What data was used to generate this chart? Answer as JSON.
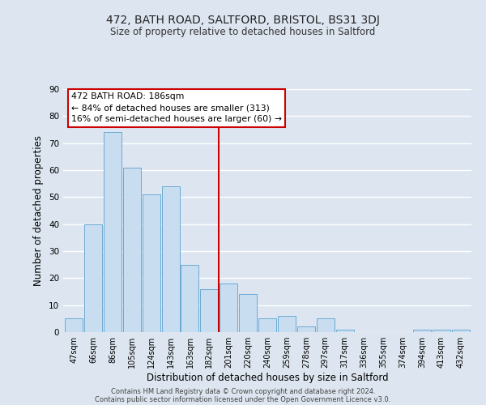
{
  "title": "472, BATH ROAD, SALTFORD, BRISTOL, BS31 3DJ",
  "subtitle": "Size of property relative to detached houses in Saltford",
  "xlabel": "Distribution of detached houses by size in Saltford",
  "ylabel": "Number of detached properties",
  "bar_labels": [
    "47sqm",
    "66sqm",
    "86sqm",
    "105sqm",
    "124sqm",
    "143sqm",
    "163sqm",
    "182sqm",
    "201sqm",
    "220sqm",
    "240sqm",
    "259sqm",
    "278sqm",
    "297sqm",
    "317sqm",
    "336sqm",
    "355sqm",
    "374sqm",
    "394sqm",
    "413sqm",
    "432sqm"
  ],
  "bar_values": [
    5,
    40,
    74,
    61,
    51,
    54,
    25,
    16,
    18,
    14,
    5,
    6,
    2,
    5,
    1,
    0,
    0,
    0,
    1,
    1,
    1
  ],
  "bar_color": "#c9ddf0",
  "bar_edge_color": "#6aaad4",
  "vline_color": "#cc0000",
  "annotation_title": "472 BATH ROAD: 186sqm",
  "annotation_line1": "← 84% of detached houses are smaller (313)",
  "annotation_line2": "16% of semi-detached houses are larger (60) →",
  "annotation_box_facecolor": "#ffffff",
  "annotation_box_edgecolor": "#cc0000",
  "ylim": [
    0,
    90
  ],
  "yticks": [
    0,
    10,
    20,
    30,
    40,
    50,
    60,
    70,
    80,
    90
  ],
  "background_color": "#dde6f0",
  "grid_color": "#ffffff",
  "footer1": "Contains HM Land Registry data © Crown copyright and database right 2024.",
  "footer2": "Contains public sector information licensed under the Open Government Licence v3.0."
}
